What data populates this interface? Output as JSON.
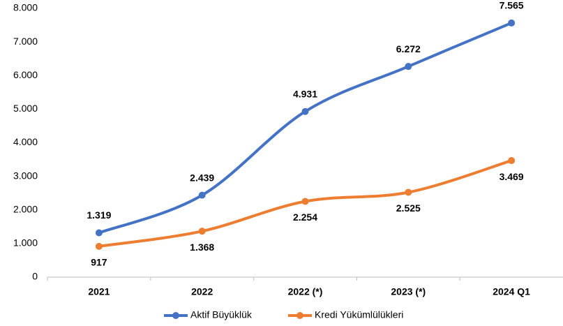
{
  "chart_data": {
    "type": "line",
    "categories": [
      "2021",
      "2022",
      "2022 (*)",
      "2023 (*)",
      "2024 Q1"
    ],
    "series": [
      {
        "name": "Aktif Büyüklük",
        "color": "#4472c4",
        "values": [
          1319,
          2439,
          4931,
          6272,
          7565
        ],
        "value_labels": [
          "1.319",
          "2.439",
          "4.931",
          "6.272",
          "7.565"
        ]
      },
      {
        "name": "Kredi Yükümlülükleri",
        "color": "#ed7d31",
        "values": [
          917,
          1368,
          2254,
          2525,
          3469
        ],
        "value_labels": [
          "917",
          "1.368",
          "2.254",
          "2.525",
          "3.469"
        ]
      }
    ],
    "ylim": [
      0,
      8000
    ],
    "yticks": [
      0,
      {
        "value": 1000,
        "label": "1.000"
      },
      {
        "value": 2000,
        "label": "2.000"
      },
      {
        "value": 3000,
        "label": "3.000"
      },
      {
        "value": 4000,
        "label": "4.000"
      },
      {
        "value": 5000,
        "label": "5.000"
      },
      {
        "value": 6000,
        "label": "6.000"
      },
      {
        "value": 7000,
        "label": "7.000"
      },
      {
        "value": 8000,
        "label": "8.000"
      }
    ],
    "grid": false,
    "legend": "bottom"
  }
}
